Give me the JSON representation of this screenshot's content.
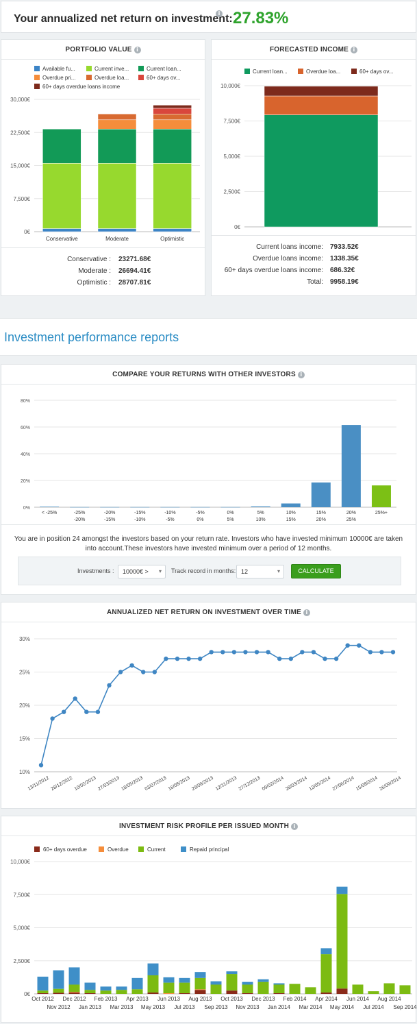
{
  "header": {
    "title": "Your annualized net return on investment:",
    "value": "27.83%"
  },
  "portfolio": {
    "title": "PORTFOLIO VALUE",
    "legend": [
      {
        "name": "Available fu...",
        "color": "#3c84c6"
      },
      {
        "name": "Current inve...",
        "color": "#97d92e"
      },
      {
        "name": "Current loan...",
        "color": "#129a57"
      },
      {
        "name": "Overdue pri...",
        "color": "#f58d3b"
      },
      {
        "name": "Overdue loa...",
        "color": "#d86a31"
      },
      {
        "name": "60+ days ov...",
        "color": "#d9463c"
      },
      {
        "name": "60+ days overdue loans income",
        "color": "#7d2a1c"
      }
    ],
    "summary": [
      {
        "label": "Conservative :",
        "value": "23271.68€"
      },
      {
        "label": "Moderate :",
        "value": "26694.41€"
      },
      {
        "label": "Optimistic :",
        "value": "28707.81€"
      }
    ]
  },
  "forecast": {
    "title": "FORECASTED INCOME",
    "legend": [
      {
        "name": "Current loan...",
        "color": "#0f9a5f"
      },
      {
        "name": "Overdue loa...",
        "color": "#d8642d"
      },
      {
        "name": "60+ days ov...",
        "color": "#7d2a1c"
      }
    ],
    "summary": [
      {
        "label": "Current loans income:",
        "value": "7933.52€"
      },
      {
        "label": "Overdue loans income:",
        "value": "1338.35€"
      },
      {
        "label": "60+ days overdue loans income:",
        "value": "686.32€"
      },
      {
        "label": "Total:",
        "value": "9958.19€"
      }
    ]
  },
  "reports": {
    "heading": "Investment performance reports"
  },
  "compare": {
    "title": "COMPARE YOUR RETURNS WITH OTHER INVESTORS",
    "text": "You are in position 24 amongst the investors based on your return rate. Investors who have invested minimum 10000€ are taken into account.These investors have invested minimum over a period of 12 months.",
    "investments_label": "Investments :",
    "investments_value": "10000€ >",
    "track_label": "Track record in months:",
    "track_value": "12",
    "button": "CALCULATE"
  },
  "annualized": {
    "title": "ANNUALIZED NET RETURN ON INVESTMENT OVER TIME"
  },
  "risk": {
    "title": "INVESTMENT RISK PROFILE PER ISSUED MONTH",
    "legend": [
      {
        "name": "60+ days overdue",
        "color": "#8a2a1a"
      },
      {
        "name": "Overdue",
        "color": "#f58d3b"
      },
      {
        "name": "Current",
        "color": "#7cbb12"
      },
      {
        "name": "Repaid principal",
        "color": "#3f8fc8"
      }
    ]
  },
  "chart_data": [
    {
      "id": "portfolio",
      "type": "bar",
      "stacked": true,
      "categories": [
        "Conservative",
        "Moderate",
        "Optimistic"
      ],
      "ylim": [
        0,
        30000
      ],
      "yticks": [
        "0€",
        "7,500€",
        "15,000€",
        "22,500€",
        "30,000€"
      ],
      "series": [
        {
          "name": "Available fu...",
          "values": [
            700,
            700,
            700
          ]
        },
        {
          "name": "Current inve...",
          "values": [
            14800,
            14800,
            14800
          ]
        },
        {
          "name": "Current loan...",
          "values": [
            7770,
            7770,
            7770
          ]
        },
        {
          "name": "Overdue pri...",
          "values": [
            0,
            2100,
            2100
          ]
        },
        {
          "name": "Overdue loa...",
          "values": [
            0,
            1320,
            1320
          ]
        },
        {
          "name": "60+ days ov...",
          "values": [
            0,
            0,
            1300
          ]
        },
        {
          "name": "60+ days overdue loans income",
          "values": [
            0,
            0,
            700
          ]
        }
      ]
    },
    {
      "id": "forecast",
      "type": "bar",
      "stacked": true,
      "categories": [
        ""
      ],
      "ylim": [
        0,
        10000
      ],
      "yticks": [
        "0€",
        "2,500€",
        "5,000€",
        "7,500€",
        "10,000€"
      ],
      "series": [
        {
          "name": "Current loan...",
          "values": [
            7933.52
          ]
        },
        {
          "name": "Overdue loa...",
          "values": [
            1338.35
          ]
        },
        {
          "name": "60+ days ov...",
          "values": [
            686.32
          ]
        }
      ]
    },
    {
      "id": "compare",
      "type": "bar",
      "categories": [
        "< -25%",
        "-25%\n-20%",
        "-20%\n-15%",
        "-15%\n-10%",
        "-10%\n-5%",
        "-5%\n0%",
        "0%\n5%",
        "5%\n10%",
        "10%\n15%",
        "15%\n20%",
        "20%\n25%",
        "25%+"
      ],
      "values": [
        0.4,
        0.1,
        0.1,
        0.1,
        0.1,
        0.1,
        0.1,
        0.6,
        2.8,
        18.5,
        61.5,
        16.3
      ],
      "highlight_index": 11,
      "colors": {
        "base": "#4a8fc4",
        "highlight": "#7cc015"
      },
      "ylim": [
        0,
        80
      ],
      "yticks": [
        "0%",
        "20%",
        "40%",
        "60%",
        "80%"
      ]
    },
    {
      "id": "annualized",
      "type": "line",
      "ylim": [
        10,
        30
      ],
      "yticks": [
        "10%",
        "15%",
        "20%",
        "25%",
        "30%"
      ],
      "xticks": [
        "13/11/2012",
        "28/12/2012",
        "10/02/2013",
        "27/03/2013",
        "18/05/2013",
        "03/07/2013",
        "16/08/2013",
        "29/09/2013",
        "12/11/2013",
        "27/12/2013",
        "09/02/2014",
        "28/03/2014",
        "12/05/2014",
        "27/06/2014",
        "15/08/2014",
        "26/09/2014"
      ],
      "values": [
        11,
        18,
        19,
        21,
        19,
        19,
        23,
        25,
        26,
        25,
        25,
        27,
        27,
        27,
        27,
        28,
        28,
        28,
        28,
        28,
        28,
        27,
        27,
        28,
        28,
        27,
        27,
        29,
        29,
        28,
        28,
        28
      ]
    },
    {
      "id": "risk",
      "type": "bar",
      "stacked": true,
      "ylim": [
        0,
        10000
      ],
      "yticks": [
        "0€",
        "2,500€",
        "5,000€",
        "7,500€",
        "10,000€"
      ],
      "categories": [
        "Oct 2012",
        "Nov 2012",
        "Dec 2012",
        "Jan 2013",
        "Feb 2013",
        "Mar 2013",
        "Apr 2013",
        "May 2013",
        "Jun 2013",
        "Jul 2013",
        "Aug 2013",
        "Sep 2013",
        "Oct 2013",
        "Nov 2013",
        "Dec 2013",
        "Jan 2014",
        "Feb 2014",
        "Mar 2014",
        "Apr 2014",
        "May 2014",
        "Jun 2014",
        "Jul 2014",
        "Aug 2014",
        "Sep 2014"
      ],
      "series": [
        {
          "name": "60+ days overdue",
          "values": [
            50,
            80,
            100,
            50,
            0,
            0,
            0,
            100,
            0,
            50,
            300,
            0,
            250,
            50,
            0,
            50,
            0,
            0,
            100,
            400,
            0,
            0,
            0,
            0
          ]
        },
        {
          "name": "Overdue",
          "values": [
            0,
            0,
            50,
            0,
            0,
            0,
            0,
            0,
            50,
            0,
            50,
            0,
            0,
            0,
            0,
            0,
            0,
            0,
            0,
            0,
            0,
            0,
            0,
            0
          ]
        },
        {
          "name": "Current",
          "values": [
            200,
            300,
            550,
            250,
            250,
            300,
            350,
            1300,
            800,
            800,
            850,
            700,
            1250,
            650,
            900,
            650,
            750,
            500,
            2900,
            7150,
            700,
            200,
            800,
            650
          ]
        },
        {
          "name": "Repaid principal",
          "values": [
            1050,
            1400,
            1300,
            550,
            300,
            250,
            850,
            900,
            400,
            350,
            450,
            250,
            200,
            200,
            200,
            100,
            0,
            0,
            450,
            550,
            0,
            0,
            0,
            0
          ]
        }
      ]
    }
  ]
}
